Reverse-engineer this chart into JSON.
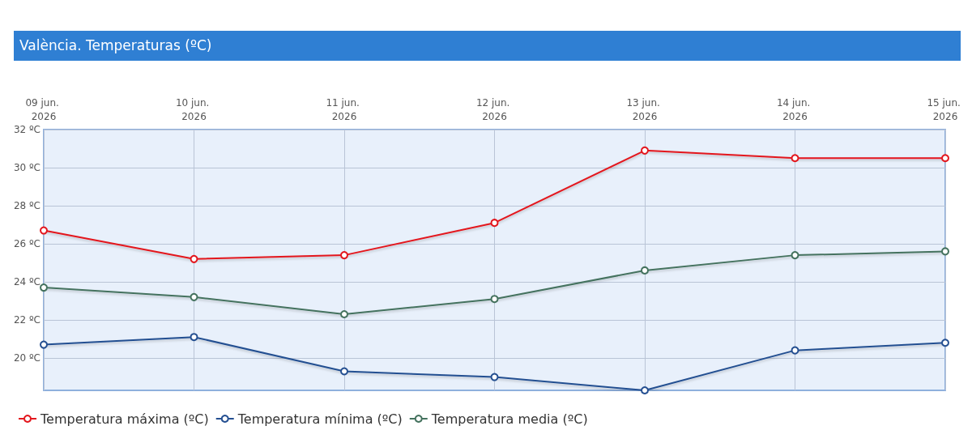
{
  "chart_data": {
    "type": "line",
    "title": "València. Temperaturas (ºC)",
    "categories": [
      "09 jun. 2026",
      "10 jun. 2026",
      "11 jun. 2026",
      "12 jun. 2026",
      "13 jun. 2026",
      "14 jun. 2026",
      "15 jun. 2026"
    ],
    "series": [
      {
        "name": "Temperatura máxima (ºC)",
        "color": "#e3161d",
        "values": [
          26.7,
          25.2,
          25.4,
          27.1,
          30.9,
          30.5,
          30.5
        ]
      },
      {
        "name": "Temperatura mínima (ºC)",
        "color": "#244f91",
        "values": [
          20.7,
          21.1,
          19.3,
          19.0,
          18.3,
          20.4,
          20.8
        ]
      },
      {
        "name": "Temperatura media (ºC)",
        "color": "#44725e",
        "values": [
          23.7,
          23.2,
          22.3,
          23.1,
          24.6,
          25.4,
          25.6
        ]
      }
    ],
    "ylim": [
      18.3,
      32
    ],
    "yticks": [
      {
        "value": 20,
        "label": "20 ºC"
      },
      {
        "value": 22,
        "label": "22 ºC"
      },
      {
        "value": 24,
        "label": "24 ºC"
      },
      {
        "value": 26,
        "label": "26 ºC"
      },
      {
        "value": 28,
        "label": "28 ºC"
      },
      {
        "value": 30,
        "label": "30 ºC"
      },
      {
        "value": 32,
        "label": "32 ºC"
      }
    ],
    "grid": true,
    "legend": "bottom left",
    "marker": "circle",
    "line_style": "solid"
  }
}
